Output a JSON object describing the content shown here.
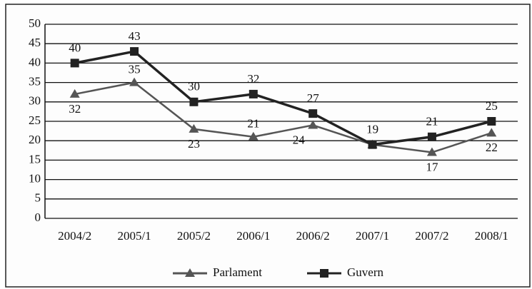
{
  "chart_data": {
    "type": "line",
    "categories": [
      "2004/2",
      "2005/1",
      "2005/2",
      "2006/1",
      "2006/2",
      "2007/1",
      "2007/2",
      "2008/1"
    ],
    "series": [
      {
        "name": "Parlament",
        "color": "#555555",
        "marker": "triangle",
        "values": [
          32,
          35,
          23,
          21,
          24,
          19,
          17,
          22
        ],
        "value_labels": [
          "32",
          "35",
          "23",
          "21",
          "24",
          null,
          "17",
          "22"
        ]
      },
      {
        "name": "Guvern",
        "color": "#222222",
        "marker": "square",
        "values": [
          40,
          43,
          30,
          32,
          27,
          19,
          21,
          25
        ]
      }
    ],
    "ylim": [
      0,
      50
    ],
    "yticks": [
      0,
      5,
      10,
      15,
      20,
      25,
      30,
      35,
      40,
      45,
      50
    ],
    "grid": true,
    "legend": "bottom"
  }
}
